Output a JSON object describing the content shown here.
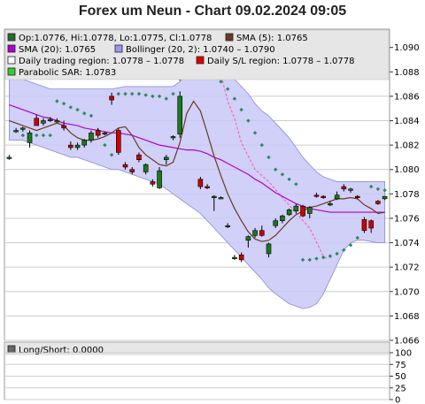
{
  "title": "Forex um Neun - Chart 09.02.2024 09:05",
  "colors": {
    "band_fill": "#c8c8f8",
    "band_line": "#8a8ae0",
    "sma5": "#6b3a1e",
    "sma20": "#b000d0",
    "sar": "#2a8a5a",
    "sl_line": "#ff66aa",
    "candle_up": "#1a7a1a",
    "candle_down": "#cc0000",
    "grid": "#cccccc"
  },
  "chart_data": [
    {
      "type": "candlestick",
      "title": "Forex um Neun - Chart 09.02.2024 09:05",
      "ylim": [
        1.066,
        1.0915
      ],
      "y_ticks": [
        "1.090",
        "1.088",
        "1.086",
        "1.084",
        "1.082",
        "1.080",
        "1.078",
        "1.076",
        "1.074",
        "1.072",
        "1.070",
        "1.068",
        "1.066"
      ],
      "legend": [
        {
          "label": "Op:1.0776, Hi:1.0778, Lo:1.0775, Cl:1.0778",
          "color": "#2a6a2a"
        },
        {
          "label": "SMA (5): 1.0765",
          "color": "#6b3a1e"
        },
        {
          "label": "SMA (20): 1.0765",
          "color": "#b000d0"
        },
        {
          "label": "Bollinger (20, 2): 1.0740 – 1.0790",
          "color": "#9a9af0"
        },
        {
          "label": "Daily trading region: 1.0778 – 1.0778",
          "color": "#ffffff"
        },
        {
          "label": "Daily S/L region: 1.0778 – 1.0778",
          "color": "#dd0000"
        },
        {
          "label": "Parabolic SAR: 1.0783",
          "color": "#33cc33"
        }
      ],
      "candles": [
        [
          1.081,
          1.0812,
          1.0808,
          1.081
        ],
        [
          1.0832,
          1.0834,
          1.083,
          1.0832
        ],
        [
          1.0833,
          1.0835,
          1.0831,
          1.0834
        ],
        [
          1.0822,
          1.0832,
          1.0818,
          1.083
        ],
        [
          1.0842,
          1.0845,
          1.0836,
          1.0836
        ],
        [
          1.0838,
          1.0842,
          1.0836,
          1.084
        ],
        [
          1.0841,
          1.0843,
          1.0839,
          1.0841
        ],
        [
          1.084,
          1.0842,
          1.0838,
          1.084
        ],
        [
          1.0836,
          1.084,
          1.0832,
          1.0834
        ],
        [
          1.082,
          1.0823,
          1.0816,
          1.0818
        ],
        [
          1.0818,
          1.0822,
          1.0816,
          1.082
        ],
        [
          1.082,
          1.0825,
          1.0818,
          1.0824
        ],
        [
          1.0824,
          1.0832,
          1.0822,
          1.083
        ],
        [
          1.0832,
          1.0834,
          1.0826,
          1.0828
        ],
        [
          1.083,
          1.0831,
          1.0828,
          1.083
        ],
        [
          1.086,
          1.0863,
          1.0853,
          1.0857
        ],
        [
          1.0832,
          1.0834,
          1.0812,
          1.0814
        ],
        [
          1.0804,
          1.0806,
          1.08,
          1.0802
        ],
        [
          1.08,
          1.0802,
          1.0796,
          1.0798
        ],
        [
          1.0812,
          1.0814,
          1.0806,
          1.0808
        ],
        [
          1.0798,
          1.0805,
          1.0796,
          1.0804
        ],
        [
          1.079,
          1.0792,
          1.0786,
          1.0788
        ],
        [
          1.0785,
          1.0802,
          1.0784,
          1.0799
        ],
        [
          1.0808,
          1.0812,
          1.0804,
          1.081
        ],
        [
          1.0826,
          1.0828,
          1.0824,
          1.0827
        ],
        [
          1.0829,
          1.0864,
          1.0826,
          1.086
        ],
        [
          1.088,
          1.0886,
          1.0878,
          1.0883
        ],
        [
          1.0883,
          1.0886,
          1.088,
          1.0884
        ],
        [
          1.0792,
          1.0794,
          1.0784,
          1.0786
        ],
        [
          1.0786,
          1.0788,
          1.0784,
          1.0785
        ],
        [
          1.0777,
          1.0779,
          1.0766,
          1.0778
        ],
        [
          1.0777,
          1.0778,
          1.0776,
          1.0777
        ],
        [
          1.0754,
          1.0756,
          1.0752,
          1.0754
        ],
        [
          1.0728,
          1.073,
          1.0726,
          1.0728
        ],
        [
          1.073,
          1.0732,
          1.0724,
          1.0726
        ],
        [
          1.0742,
          1.0746,
          1.0736,
          1.0745
        ],
        [
          1.0746,
          1.0752,
          1.0744,
          1.075
        ],
        [
          1.075,
          1.0754,
          1.0745,
          1.0746
        ],
        [
          1.0731,
          1.074,
          1.0728,
          1.0739
        ],
        [
          1.0754,
          1.076,
          1.0752,
          1.0758
        ],
        [
          1.0758,
          1.0763,
          1.0756,
          1.0762
        ],
        [
          1.0763,
          1.0768,
          1.0762,
          1.0767
        ],
        [
          1.0766,
          1.0772,
          1.0764,
          1.077
        ],
        [
          1.077,
          1.0771,
          1.0761,
          1.0762
        ],
        [
          1.0764,
          1.077,
          1.076,
          1.0769
        ],
        [
          1.0779,
          1.0781,
          1.0777,
          1.0778
        ],
        [
          1.0778,
          1.0779,
          1.0776,
          1.0777
        ],
        [
          1.0772,
          1.0774,
          1.077,
          1.0772
        ],
        [
          1.0776,
          1.0782,
          1.0775,
          1.0779
        ],
        [
          1.0786,
          1.0788,
          1.0782,
          1.0784
        ],
        [
          1.0783,
          1.0785,
          1.0781,
          1.0784
        ],
        [
          1.0778,
          1.0779,
          1.0776,
          1.0777
        ],
        [
          1.0759,
          1.0761,
          1.0748,
          1.075
        ],
        [
          1.0758,
          1.0759,
          1.0748,
          1.0752
        ],
        [
          1.0774,
          1.0775,
          1.0771,
          1.0772
        ],
        [
          1.0776,
          1.0778,
          1.0775,
          1.0778
        ]
      ],
      "sma5": [
        1.084,
        1.0838,
        1.0836,
        1.0834,
        1.0832,
        1.0834,
        1.0836,
        1.0838,
        1.0836,
        1.083,
        1.0826,
        1.0824,
        1.0824,
        1.0825,
        1.0827,
        1.083,
        1.0834,
        1.0835,
        1.0828,
        1.0818,
        1.0812,
        1.0808,
        1.0804,
        1.0803,
        1.0806,
        1.0822,
        1.0846,
        1.0856,
        1.0848,
        1.083,
        1.0811,
        1.0795,
        1.078,
        1.0768,
        1.0758,
        1.0749,
        1.0743,
        1.0741,
        1.0742,
        1.0746,
        1.0752,
        1.0758,
        1.0763,
        1.0766,
        1.0769,
        1.077,
        1.0772,
        1.0774,
        1.0776,
        1.0776,
        1.0777,
        1.0776,
        1.0771,
        1.0768,
        1.0764,
        1.0765
      ],
      "sma20": [
        1.0853,
        1.0851,
        1.0849,
        1.0847,
        1.0845,
        1.0843,
        1.0842,
        1.084,
        1.0838,
        1.0837,
        1.0836,
        1.0834,
        1.0833,
        1.0832,
        1.0831,
        1.083,
        1.083,
        1.0829,
        1.0828,
        1.0826,
        1.0824,
        1.0822,
        1.082,
        1.0819,
        1.0818,
        1.0817,
        1.0816,
        1.0816,
        1.0815,
        1.0813,
        1.081,
        1.0808,
        1.0805,
        1.0802,
        1.0799,
        1.0796,
        1.0792,
        1.0789,
        1.0785,
        1.0781,
        1.0778,
        1.0775,
        1.0772,
        1.077,
        1.0768,
        1.0767,
        1.0766,
        1.0765,
        1.0765,
        1.0765,
        1.0765,
        1.0765,
        1.0765,
        1.0765,
        1.0765,
        1.0765
      ],
      "boll_upper": [
        1.0878,
        1.0876,
        1.0874,
        1.0872,
        1.087,
        1.0868,
        1.0866,
        1.0866,
        1.0866,
        1.0866,
        1.0866,
        1.0866,
        1.0866,
        1.0866,
        1.0866,
        1.0866,
        1.0867,
        1.0868,
        1.0868,
        1.0868,
        1.0868,
        1.0868,
        1.0868,
        1.0868,
        1.0868,
        1.0872,
        1.088,
        1.0886,
        1.0888,
        1.089,
        1.089,
        1.0886,
        1.088,
        1.0874,
        1.0868,
        1.0862,
        1.0854,
        1.0848,
        1.0844,
        1.0838,
        1.0832,
        1.0826,
        1.0818,
        1.081,
        1.0804,
        1.0798,
        1.0794,
        1.0792,
        1.079,
        1.079,
        1.079,
        1.079,
        1.079,
        1.079,
        1.079,
        1.079
      ],
      "boll_lower": [
        1.0824,
        1.0824,
        1.0824,
        1.0822,
        1.082,
        1.0818,
        1.0816,
        1.0814,
        1.0812,
        1.081,
        1.081,
        1.0808,
        1.0806,
        1.0804,
        1.0802,
        1.08,
        1.08,
        1.0798,
        1.0796,
        1.0794,
        1.0792,
        1.079,
        1.0788,
        1.0784,
        1.078,
        1.0776,
        1.0772,
        1.0768,
        1.0764,
        1.0758,
        1.0752,
        1.0746,
        1.074,
        1.0734,
        1.0728,
        1.0722,
        1.0716,
        1.071,
        1.0703,
        1.0698,
        1.0694,
        1.069,
        1.0688,
        1.0686,
        1.0687,
        1.069,
        1.0698,
        1.071,
        1.0722,
        1.0734,
        1.074,
        1.0742,
        1.0742,
        1.0741,
        1.074,
        1.074
      ],
      "sar": [
        null,
        null,
        1.0828,
        1.0828,
        1.0828,
        1.0828,
        1.0828,
        1.0856,
        1.0854,
        1.0851,
        1.0849,
        1.0846,
        1.0844,
        1.0832,
        1.082,
        1.0812,
        1.0862,
        1.0862,
        1.0862,
        1.0862,
        1.0861,
        1.086,
        1.086,
        1.0858,
        1.0862,
        1.0874,
        1.0883,
        1.0885,
        1.0886,
        1.0882,
        1.0877,
        1.0872,
        1.0866,
        1.0858,
        1.0849,
        1.084,
        1.083,
        1.082,
        1.081,
        1.08,
        1.0796,
        1.0792,
        1.0788,
        1.0726,
        1.0726,
        1.0727,
        1.0728,
        1.0729,
        1.0731,
        1.0734,
        1.0738,
        1.0744,
        1.0754,
        1.0786,
        1.0784,
        1.0783
      ],
      "sl_trail": [
        [
          28,
          1.0883
        ],
        [
          29,
          1.0886
        ],
        [
          31,
          1.0878
        ],
        [
          32,
          1.0856
        ],
        [
          33,
          1.0842
        ],
        [
          34,
          1.0822
        ],
        [
          36,
          1.08
        ],
        [
          38,
          1.079
        ],
        [
          40,
          1.0777
        ],
        [
          44,
          1.0752
        ],
        [
          46,
          1.0729
        ],
        [
          46.5,
          1.0727
        ]
      ]
    },
    {
      "type": "line",
      "title": "",
      "series": [
        {
          "name": "Long/Short: 0.0000",
          "values": [
            0
          ]
        }
      ],
      "ylim": [
        0,
        100
      ],
      "y_ticks": [
        "100",
        "75",
        "50",
        "25",
        "0"
      ]
    }
  ]
}
